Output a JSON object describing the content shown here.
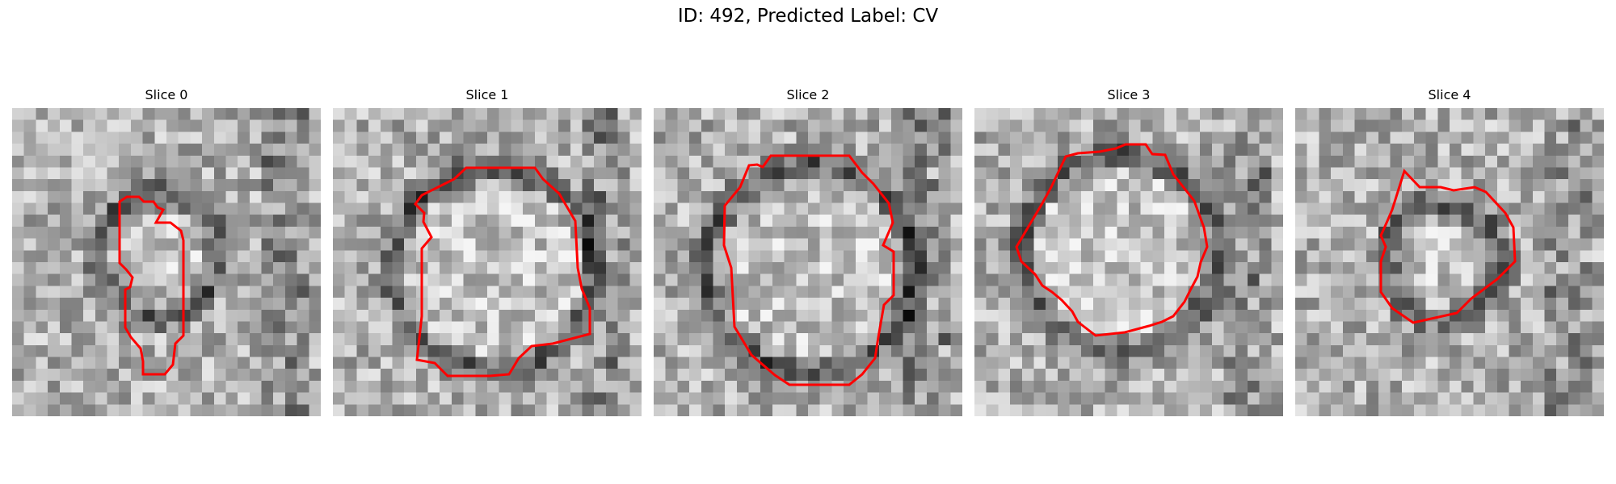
{
  "figure": {
    "title": "ID: 492, Predicted Label: CV"
  },
  "slices": [
    {
      "title": "Slice 0"
    },
    {
      "title": "Slice 1"
    },
    {
      "title": "Slice 2"
    },
    {
      "title": "Slice 3"
    },
    {
      "title": "Slice 4"
    }
  ],
  "colors": {
    "contour": "#ff0000",
    "background": "#ffffff"
  }
}
